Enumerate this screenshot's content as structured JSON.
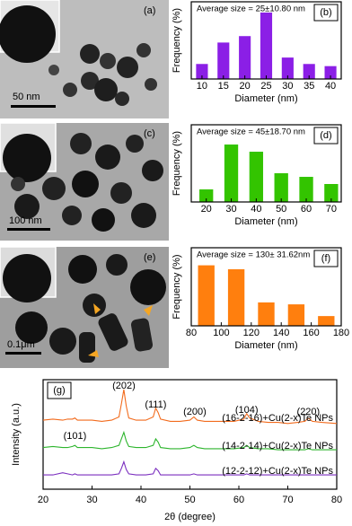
{
  "panels": [
    {
      "label": "(a)",
      "scale_bar": "50 nm"
    },
    {
      "label": "(c)",
      "scale_bar": "100 nm"
    },
    {
      "label": "(e)",
      "scale_bar": "0.1μm"
    }
  ],
  "chart_data": [
    {
      "type": "bar",
      "label": "(b)",
      "annotation": "Average size = 25±10.80 nm",
      "x": [
        10,
        15,
        20,
        25,
        30,
        35,
        40
      ],
      "values": [
        7,
        17,
        20,
        31,
        10,
        7,
        6
      ],
      "color": "#8b1fe6",
      "xlim": [
        7.5,
        42.5
      ],
      "xticks": [
        10,
        15,
        20,
        25,
        30,
        35,
        40
      ],
      "ylim": [
        0,
        36
      ],
      "xlabel": "Diameter (nm)",
      "ylabel": "Frequency (%)"
    },
    {
      "type": "bar",
      "label": "(d)",
      "annotation": "Average size = 45±18.70 nm",
      "x": [
        20,
        30,
        40,
        50,
        60,
        70
      ],
      "values": [
        7,
        32,
        28,
        16,
        14,
        10
      ],
      "color": "#33c400",
      "xlim": [
        14,
        74
      ],
      "xticks": [
        20,
        30,
        40,
        50,
        60,
        70
      ],
      "ylim": [
        0,
        43
      ],
      "xlabel": "Diameter (nm)",
      "ylabel": "Frequency (%)"
    },
    {
      "type": "bar",
      "label": "(f)",
      "annotation": "Average size = 130± 31.62nm",
      "x": [
        90,
        110,
        130,
        150,
        170
      ],
      "values": [
        31,
        29,
        12,
        11,
        5
      ],
      "color": "#ff7f0e",
      "xlim": [
        80,
        180
      ],
      "xticks": [
        80,
        100,
        120,
        140,
        160,
        180
      ],
      "ylim": [
        0,
        40
      ],
      "xlabel": "Diameter (nm)",
      "ylabel": "Frequency (%)"
    },
    {
      "type": "line",
      "label": "(g)",
      "xlabel": "2θ (degree)",
      "ylabel": "Intensity (a.u.)",
      "xlim": [
        20,
        80
      ],
      "xticks": [
        20,
        30,
        40,
        50,
        60,
        70,
        80
      ],
      "ylim": [
        0,
        100
      ],
      "x": [
        20,
        22,
        24,
        25,
        26,
        26.5,
        27,
        28,
        30,
        32,
        34,
        35.5,
        36,
        36.5,
        37,
        37.5,
        39,
        41,
        42.5,
        43,
        43.5,
        44,
        46,
        48,
        50,
        50.8,
        51.5,
        53,
        55,
        57,
        59,
        61,
        61.6,
        62.2,
        64,
        66,
        68,
        70,
        72,
        73.5,
        74.2,
        75,
        77,
        80
      ],
      "series": [
        {
          "name": "(16-2-16)+Cu(2-x)Te NPs",
          "color": "#f26b1d",
          "values": [
            63,
            64,
            63,
            64,
            64,
            65,
            63,
            63,
            63,
            62,
            63,
            66,
            78,
            91,
            76,
            65,
            63,
            63,
            66,
            74,
            70,
            64,
            62,
            62,
            63,
            66,
            63,
            62,
            62,
            62,
            62,
            64,
            69,
            65,
            62,
            61,
            61,
            60,
            61,
            62,
            65,
            62,
            61,
            60
          ]
        },
        {
          "name": "(14-2-14)+Cu(2-x)Te NPs",
          "color": "#2db52d",
          "values": [
            38,
            39,
            38,
            38,
            39,
            40,
            38,
            38,
            38,
            37,
            38,
            40,
            46,
            52,
            44,
            39,
            38,
            38,
            40,
            46,
            43,
            38,
            37,
            37,
            38,
            40,
            38,
            37,
            37,
            37,
            37,
            38,
            40,
            38,
            37,
            37,
            36,
            36,
            36,
            36,
            37,
            36,
            36,
            36
          ]
        },
        {
          "name": "(12-2-12)+Cu(2-x)Te NPs",
          "color": "#7b2fbf",
          "values": [
            13,
            13,
            15,
            14,
            13,
            14,
            13,
            13,
            13,
            13,
            13,
            14,
            19,
            25,
            18,
            14,
            13,
            13,
            14,
            19,
            17,
            13,
            13,
            13,
            13,
            14,
            13,
            13,
            13,
            13,
            13,
            13,
            14,
            13,
            13,
            13,
            13,
            13,
            13,
            13,
            13,
            13,
            13,
            13
          ]
        }
      ],
      "annotations": [
        "(202)",
        "(111)",
        "(200)",
        "(104)",
        "(220)",
        "(101)"
      ]
    }
  ]
}
